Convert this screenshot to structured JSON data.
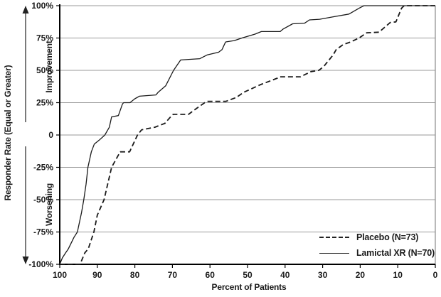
{
  "figure": {
    "xlabel": "Percent of Patients",
    "ylabel": "Responder Rate (Equal or Greater)",
    "upper_region_label": "Improvement",
    "lower_region_label": "Worsening",
    "legend": [
      {
        "label": "Placebo (N=73)",
        "style": "dashed"
      },
      {
        "label": "Lamictal XR (N=70)",
        "style": "solid"
      }
    ]
  },
  "colors": {
    "line": "#1a1a1a",
    "grid": "#999999",
    "axis": "#000000",
    "border": "#8a8a8a",
    "text": "#1a1a1a"
  },
  "chart_data": {
    "type": "line",
    "title": "",
    "xlabel": "Percent of Patients",
    "ylabel": "Responder Rate (Equal or Greater)",
    "xlim": [
      100,
      0
    ],
    "ylim": [
      -100,
      100
    ],
    "x_ticks": [
      100,
      90,
      80,
      70,
      60,
      50,
      40,
      30,
      20,
      10,
      0
    ],
    "y_ticks": [
      {
        "v": 100,
        "label": "100%"
      },
      {
        "v": 75,
        "label": "75%"
      },
      {
        "v": 50,
        "label": "50%"
      },
      {
        "v": 25,
        "label": "25%"
      },
      {
        "v": 0,
        "label": "0"
      },
      {
        "v": -25,
        "label": "-25%"
      },
      {
        "v": -50,
        "label": "-50%"
      },
      {
        "v": -75,
        "label": "-75%"
      },
      {
        "v": -100,
        "label": "-100%"
      }
    ],
    "grid": "horizontal",
    "legend_position": "inside-bottom-right",
    "annotations": [
      "Improvement (up arrow)",
      "Worsening (down arrow)"
    ],
    "series": [
      {
        "name": "Placebo (N=73)",
        "id": "placebo",
        "style": "dashed",
        "points": [
          [
            100,
            -100
          ],
          [
            94.6,
            -100
          ],
          [
            93.3,
            -91
          ],
          [
            92.4,
            -88
          ],
          [
            90.9,
            -75
          ],
          [
            90,
            -62
          ],
          [
            88.2,
            -50
          ],
          [
            86.2,
            -25
          ],
          [
            83.9,
            -13
          ],
          [
            81.4,
            -13
          ],
          [
            79.3,
            0
          ],
          [
            78.2,
            4
          ],
          [
            74.7,
            6
          ],
          [
            72,
            9
          ],
          [
            70.2,
            15
          ],
          [
            69.8,
            16
          ],
          [
            65.7,
            16
          ],
          [
            64.3,
            19
          ],
          [
            62.9,
            22
          ],
          [
            61.4,
            25
          ],
          [
            60.6,
            26
          ],
          [
            55.8,
            26
          ],
          [
            53,
            29
          ],
          [
            51,
            33
          ],
          [
            46.5,
            39
          ],
          [
            42,
            44
          ],
          [
            41.4,
            45
          ],
          [
            35.9,
            45
          ],
          [
            33.1,
            49
          ],
          [
            31,
            50
          ],
          [
            29.7,
            53
          ],
          [
            28.3,
            58
          ],
          [
            27.2,
            62
          ],
          [
            26.4,
            66
          ],
          [
            24.5,
            70
          ],
          [
            22.5,
            72
          ],
          [
            20.3,
            75
          ],
          [
            18.3,
            79
          ],
          [
            15,
            79.5
          ],
          [
            13.6,
            83
          ],
          [
            12,
            87
          ],
          [
            10.5,
            87.5
          ],
          [
            9,
            98
          ],
          [
            8.3,
            100
          ],
          [
            0,
            100
          ]
        ]
      },
      {
        "name": "Lamictal XR (N=70)",
        "id": "lamictal-xr",
        "style": "solid",
        "points": [
          [
            100,
            -100
          ],
          [
            99.3,
            -95
          ],
          [
            98.4,
            -91
          ],
          [
            97.7,
            -88
          ],
          [
            96.2,
            -79
          ],
          [
            95.3,
            -75
          ],
          [
            94.2,
            -60
          ],
          [
            93.6,
            -50
          ],
          [
            93,
            -38
          ],
          [
            92.5,
            -25
          ],
          [
            91.6,
            -13
          ],
          [
            90.8,
            -7
          ],
          [
            89.5,
            -4
          ],
          [
            88,
            0
          ],
          [
            86.8,
            6
          ],
          [
            86.2,
            14
          ],
          [
            84.4,
            15
          ],
          [
            83.3,
            24
          ],
          [
            83,
            25
          ],
          [
            81.3,
            25
          ],
          [
            80,
            28
          ],
          [
            78.8,
            30
          ],
          [
            74.4,
            31
          ],
          [
            73.8,
            33
          ],
          [
            71.8,
            38
          ],
          [
            69.7,
            50
          ],
          [
            67.8,
            58
          ],
          [
            62.7,
            59
          ],
          [
            60.7,
            62
          ],
          [
            57.7,
            64
          ],
          [
            56.8,
            66
          ],
          [
            56,
            71
          ],
          [
            55.8,
            72
          ],
          [
            53.5,
            73
          ],
          [
            51.5,
            75
          ],
          [
            48,
            78
          ],
          [
            46.3,
            80
          ],
          [
            41.3,
            80
          ],
          [
            40.5,
            82
          ],
          [
            38,
            86
          ],
          [
            34.8,
            86.5
          ],
          [
            33.5,
            89
          ],
          [
            30.8,
            89.5
          ],
          [
            27,
            91.5
          ],
          [
            23,
            93.5
          ],
          [
            20.3,
            98
          ],
          [
            19,
            100
          ],
          [
            0,
            100
          ]
        ]
      }
    ]
  }
}
